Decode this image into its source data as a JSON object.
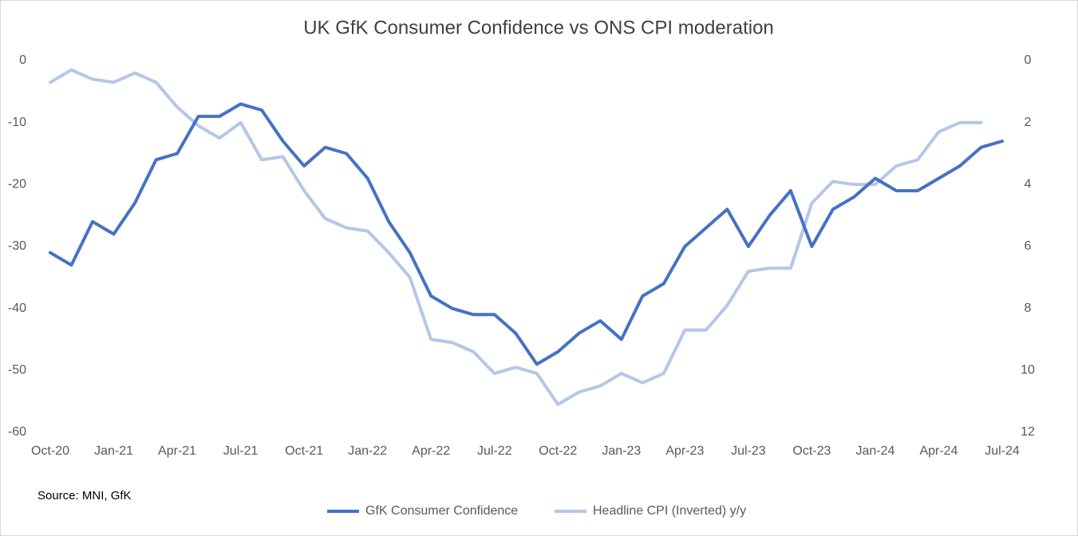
{
  "chart_data": {
    "type": "line",
    "title": "UK GfK Consumer Confidence vs ONS CPI moderation",
    "annotation": "Source: MNI, GfK",
    "categories": [
      "Oct-20",
      null,
      null,
      "Jan-21",
      null,
      null,
      "Apr-21",
      null,
      null,
      "Jul-21",
      null,
      null,
      "Oct-21",
      null,
      null,
      "Jan-22",
      null,
      null,
      "Apr-22",
      null,
      null,
      "Jul-22",
      null,
      null,
      "Oct-22",
      null,
      null,
      "Jan-23",
      null,
      null,
      "Apr-23",
      null,
      null,
      "Jul-23",
      null,
      null,
      "Oct-23",
      null,
      null,
      "Jan-24",
      null,
      null,
      "Apr-24",
      null,
      null,
      "Jul-24"
    ],
    "series": [
      {
        "name": "GfK Consumer Confidence",
        "color": "#4472c4",
        "axis": "y",
        "values": [
          -31,
          -33,
          -26,
          -28,
          -23,
          -16,
          -15,
          -9,
          -9,
          -7,
          -8,
          -13,
          -17,
          -14,
          -15,
          -19,
          -26,
          -31,
          -38,
          -40,
          -41,
          -41,
          -44,
          -49,
          -47,
          -44,
          -42,
          -45,
          -38,
          -36,
          -30,
          -27,
          -24,
          -30,
          -25,
          -21,
          -30,
          -24,
          -22,
          -19,
          -21,
          -21,
          -19,
          -17,
          -14,
          -13
        ]
      },
      {
        "name": "Headline CPI (Inverted) y/y",
        "color": "#b4c7e7",
        "axis": "y2",
        "values": [
          0.7,
          0.3,
          0.6,
          0.7,
          0.4,
          0.7,
          1.5,
          2.1,
          2.5,
          2.0,
          3.2,
          3.1,
          4.2,
          5.1,
          5.4,
          5.5,
          6.2,
          7.0,
          9.0,
          9.1,
          9.4,
          10.1,
          9.9,
          10.1,
          11.1,
          10.7,
          10.5,
          10.1,
          10.4,
          10.1,
          8.7,
          8.7,
          7.9,
          6.8,
          6.7,
          6.7,
          4.6,
          3.9,
          4.0,
          4.0,
          3.4,
          3.2,
          2.3,
          2.0,
          2.0,
          null
        ]
      }
    ],
    "ylim": [
      -60,
      0
    ],
    "yticks": [
      0,
      -10,
      -20,
      -30,
      -40,
      -50,
      -60
    ],
    "y2lim": [
      0,
      12
    ],
    "y2ticks": [
      0,
      2,
      4,
      6,
      8,
      10,
      12
    ],
    "y2_inverted": true,
    "grid": false,
    "legend": "bottom"
  }
}
